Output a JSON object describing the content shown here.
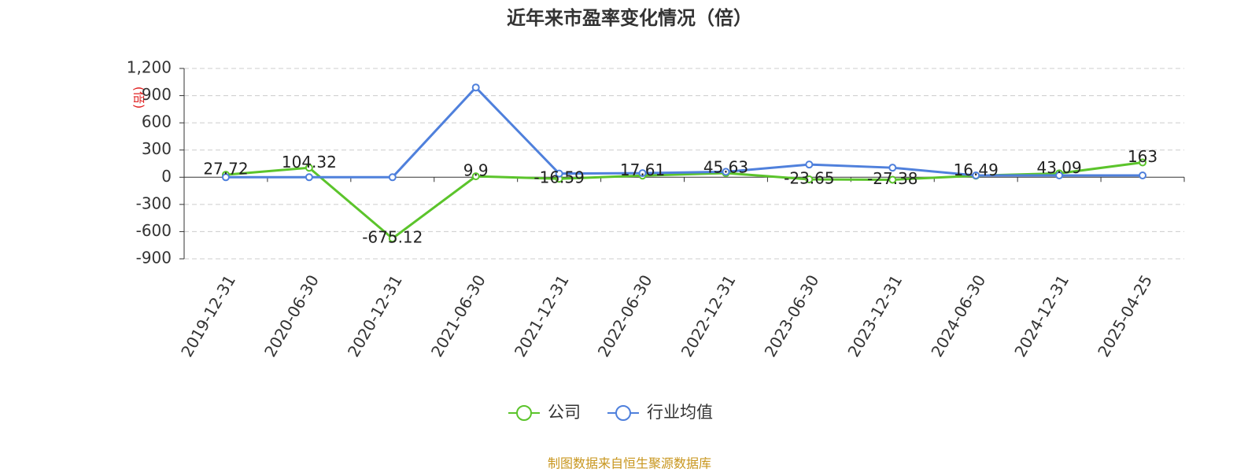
{
  "chart_data": {
    "type": "line",
    "title": "近年来市盈率变化情况（倍）",
    "y_axis_label": "(倍)",
    "categories": [
      "2019-12-31",
      "2020-06-30",
      "2020-12-31",
      "2021-06-30",
      "2021-12-31",
      "2022-06-30",
      "2022-12-31",
      "2023-06-30",
      "2023-12-31",
      "2024-06-30",
      "2024-12-31",
      "2025-04-25"
    ],
    "series": [
      {
        "name": "公司",
        "color": "#5bc42b",
        "values": [
          27.72,
          104.32,
          -675.12,
          9.9,
          -16.59,
          17.61,
          45.63,
          -23.65,
          -27.38,
          16.49,
          43.09,
          163
        ],
        "labels": true
      },
      {
        "name": "行业均值",
        "color": "#4f80dc",
        "values": [
          0,
          0,
          0,
          990,
          40,
          45,
          60,
          140,
          105,
          20,
          20,
          20
        ],
        "labels": false
      }
    ],
    "ylim": [
      -900,
      1200
    ],
    "yticks": [
      -900,
      -600,
      -300,
      0,
      300,
      600,
      900,
      {
        "value": 1200,
        "label": "1,200"
      }
    ],
    "grid": true,
    "legend": "bottom",
    "source": "制图数据来自恒生聚源数据库"
  }
}
